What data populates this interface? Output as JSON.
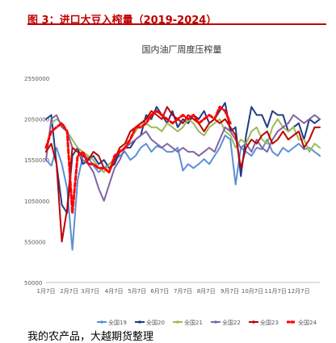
{
  "header": {
    "title": "图 3：进口大豆入榨量（2019-2024）"
  },
  "footer": {
    "source": "我的农产品，大越期货整理"
  },
  "chart_data": {
    "type": "line",
    "title": "国内油厂周度压榨量",
    "xlabel": "",
    "ylabel": "",
    "ylim": [
      50000,
      2550000
    ],
    "yticks": [
      "2550000",
      "2050000",
      "1550000",
      "1050000",
      "550000",
      "50000"
    ],
    "ytick_values": [
      2550000,
      2050000,
      1550000,
      1050000,
      550000,
      50000
    ],
    "xticks": [
      "1月7日",
      "2月7日",
      "3月7日",
      "4月7日",
      "5月7日",
      "6月7日",
      "7月7日",
      "8月7日",
      "9月7日",
      "10月7日",
      "11月7日",
      "12月7日"
    ],
    "xtick_weeks": [
      1,
      5.4,
      9.4,
      13.9,
      18.3,
      22.6,
      27,
      31.4,
      35.9,
      40.2,
      44.6,
      49
    ],
    "x_range": [
      1,
      53
    ],
    "grid": false,
    "legend_position": "bottom",
    "series": [
      {
        "name": "全国19",
        "color": "#5b8fd6",
        "style": "solid",
        "x": [
          1,
          2,
          3,
          4,
          5,
          6,
          7,
          8,
          9,
          10,
          11,
          12,
          13,
          14,
          15,
          16,
          17,
          18,
          19,
          20,
          21,
          22,
          23,
          24,
          25,
          26,
          27,
          28,
          29,
          30,
          31,
          32,
          33,
          34,
          35,
          36,
          37,
          38,
          39,
          40,
          41,
          42,
          43,
          44,
          45,
          46,
          47,
          48,
          49,
          50,
          51,
          52,
          53
        ],
        "values": [
          1550000,
          1480000,
          1700000,
          1500000,
          1200000,
          450000,
          1300000,
          1600000,
          1580000,
          1480000,
          1400000,
          1450000,
          1500000,
          1550000,
          1600000,
          1650000,
          1550000,
          1600000,
          1700000,
          1750000,
          1650000,
          1720000,
          1700000,
          1650000,
          1650000,
          1700000,
          1420000,
          1500000,
          1450000,
          1500000,
          1560000,
          1500000,
          1600000,
          1700000,
          1850000,
          1800000,
          1250000,
          1700000,
          1650000,
          1600000,
          1700000,
          1680000,
          1800000,
          1650000,
          1600000,
          1700000,
          1650000,
          1700000,
          1750000,
          1680000,
          1700000,
          1650000,
          1600000
        ]
      },
      {
        "name": "全国20",
        "color": "#1f3c88",
        "style": "solid",
        "x": [
          1,
          2,
          3,
          4,
          5,
          6,
          7,
          8,
          9,
          10,
          11,
          12,
          13,
          14,
          15,
          16,
          17,
          18,
          19,
          20,
          21,
          22,
          23,
          24,
          25,
          26,
          27,
          28,
          29,
          30,
          31,
          32,
          33,
          34,
          35,
          36,
          37,
          38,
          39,
          40,
          41,
          42,
          43,
          44,
          45,
          46,
          47,
          48,
          49,
          50,
          51,
          52,
          53
        ],
        "values": [
          2050000,
          2100000,
          1500000,
          1000000,
          900000,
          1600000,
          1700000,
          1500000,
          1550000,
          1600000,
          1500000,
          1550000,
          1450000,
          1500000,
          1650000,
          1700000,
          1700000,
          1800000,
          1850000,
          2100000,
          2050000,
          2200000,
          2100000,
          2000000,
          2150000,
          1950000,
          2050000,
          2000000,
          2100000,
          2050000,
          2150000,
          2000000,
          2050000,
          2150000,
          2250000,
          1900000,
          1950000,
          1350000,
          1850000,
          2200000,
          2100000,
          2100000,
          1950000,
          2150000,
          2100000,
          2100000,
          1900000,
          1950000,
          2000000,
          1800000,
          2050000,
          2000000,
          2050000
        ]
      },
      {
        "name": "全国21",
        "color": "#9bbb59",
        "style": "solid",
        "x": [
          1,
          2,
          3,
          4,
          5,
          6,
          7,
          8,
          9,
          10,
          11,
          12,
          13,
          14,
          15,
          16,
          17,
          18,
          19,
          20,
          21,
          22,
          23,
          24,
          25,
          26,
          27,
          28,
          29,
          30,
          31,
          32,
          33,
          34,
          35,
          36,
          37,
          38,
          39,
          40,
          41,
          42,
          43,
          44,
          45,
          46,
          47,
          48,
          49,
          50,
          51,
          52,
          53
        ],
        "values": [
          1650000,
          2000000,
          2050000,
          2000000,
          1900000,
          1800000,
          1700000,
          1650000,
          1600000,
          1550000,
          1450000,
          1400000,
          1500000,
          1550000,
          1700000,
          1750000,
          1800000,
          1900000,
          2000000,
          2000000,
          1950000,
          1950000,
          1900000,
          2000000,
          1950000,
          1900000,
          1950000,
          2050000,
          2000000,
          1900000,
          1850000,
          1950000,
          2000000,
          2050000,
          1900000,
          1850000,
          1700000,
          1800000,
          1750000,
          1900000,
          1950000,
          1800000,
          1750000,
          1950000,
          2050000,
          1950000,
          1900000,
          1950000,
          1800000,
          1800000,
          1650000,
          1750000,
          1700000
        ]
      },
      {
        "name": "全国22",
        "color": "#8064a2",
        "style": "solid",
        "x": [
          1,
          2,
          3,
          4,
          5,
          6,
          7,
          8,
          9,
          10,
          11,
          12,
          13,
          14,
          15,
          16,
          17,
          18,
          19,
          20,
          21,
          22,
          23,
          24,
          25,
          26,
          27,
          28,
          29,
          30,
          31,
          32,
          33,
          34,
          35,
          36,
          37,
          38,
          39,
          40,
          41,
          42,
          43,
          44,
          45,
          46,
          47,
          48,
          49,
          50,
          51,
          52,
          53
        ],
        "values": [
          1550000,
          2050000,
          2100000,
          1950000,
          1900000,
          1700000,
          1650000,
          1550000,
          1500000,
          1400000,
          1200000,
          1050000,
          1250000,
          1450000,
          1550000,
          1700000,
          1750000,
          1800000,
          1850000,
          1900000,
          1800000,
          1750000,
          1700000,
          1750000,
          1700000,
          1650000,
          1700000,
          1650000,
          1650000,
          1600000,
          1650000,
          1700000,
          1650000,
          1800000,
          1950000,
          1900000,
          1800000,
          1700000,
          1750000,
          1650000,
          1800000,
          1700000,
          1650000,
          1800000,
          1900000,
          1950000,
          2000000,
          2100000,
          2050000,
          2000000,
          2050000,
          2100000,
          2050000
        ]
      },
      {
        "name": "全国23",
        "color": "#c00000",
        "style": "solid",
        "x": [
          1,
          2,
          3,
          4,
          5,
          6,
          7,
          8,
          9,
          10,
          11,
          12,
          13,
          14,
          15,
          16,
          17,
          18,
          19,
          20,
          21,
          22,
          23,
          24,
          25,
          26,
          27,
          28,
          29,
          30,
          31,
          32,
          33,
          34,
          35,
          36,
          37,
          38,
          39,
          40,
          41,
          42,
          43,
          44,
          45,
          46,
          47,
          48,
          49,
          50,
          51,
          52,
          53
        ],
        "values": [
          1650000,
          1750000,
          1500000,
          550000,
          950000,
          1700000,
          1650000,
          1600000,
          1550000,
          1650000,
          1600000,
          1450000,
          1400000,
          1550000,
          1700000,
          1750000,
          1900000,
          1950000,
          2000000,
          2050000,
          2150000,
          2100000,
          2050000,
          2200000,
          2100000,
          2050000,
          2000000,
          2100000,
          2050000,
          2000000,
          1900000,
          2000000,
          2050000,
          2000000,
          2050000,
          1950000,
          1850000,
          1450000,
          1700000,
          1800000,
          1750000,
          1850000,
          1900000,
          1750000,
          1800000,
          1900000,
          1800000,
          1850000,
          1900000,
          1700000,
          1800000,
          1950000,
          1950000
        ]
      },
      {
        "name": "全国24",
        "color": "#ff0000",
        "style": "dashed",
        "x": [
          1,
          2,
          3,
          4,
          5,
          6,
          7,
          8,
          9,
          10,
          11,
          12,
          13,
          14,
          15,
          16,
          17,
          18,
          19,
          20,
          21,
          22,
          23,
          24,
          25,
          26,
          27,
          28,
          29,
          30,
          31,
          32,
          33,
          34,
          35,
          36
        ],
        "values": [
          1700000,
          1900000,
          1950000,
          2000000,
          1900000,
          900000,
          1600000,
          1650000,
          1500000,
          1500000,
          1450000,
          1450000,
          1400000,
          1600000,
          1650000,
          1700000,
          1800000,
          1950000,
          1950000,
          2000000,
          2100000,
          2150000,
          2100000,
          2050000,
          2000000,
          2050000,
          2100000,
          2050000,
          2100000,
          2000000,
          2050000,
          2100000,
          2050000,
          2200000,
          2150000,
          2000000
        ]
      }
    ]
  }
}
